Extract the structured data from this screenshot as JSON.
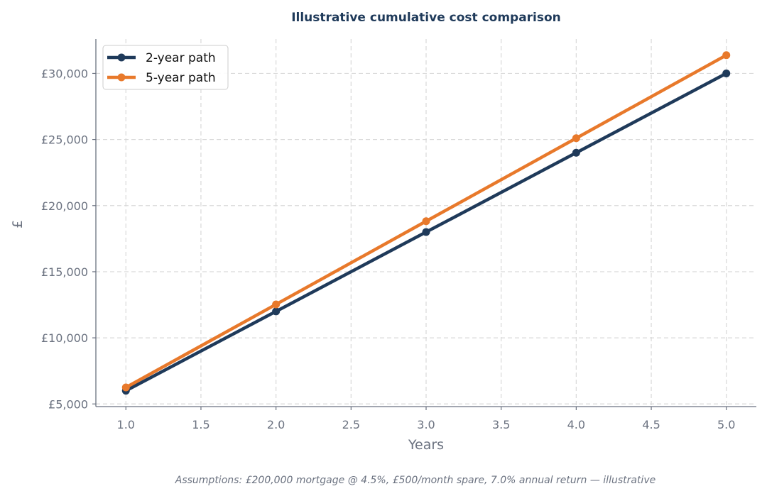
{
  "chart_data": {
    "type": "line",
    "title": "Illustrative cumulative cost comparison",
    "xlabel": "Years",
    "ylabel": "£",
    "xlim": [
      0.8,
      5.2
    ],
    "ylim": [
      4800,
      32600
    ],
    "x_ticks": [
      1.0,
      1.5,
      2.0,
      2.5,
      3.0,
      3.5,
      4.0,
      4.5,
      5.0
    ],
    "x_tick_labels": [
      "1.0",
      "1.5",
      "2.0",
      "2.5",
      "3.0",
      "3.5",
      "4.0",
      "4.5",
      "5.0"
    ],
    "y_ticks": [
      5000,
      10000,
      15000,
      20000,
      25000,
      30000
    ],
    "y_tick_labels": [
      "£5,000",
      "£10,000",
      "£15,000",
      "£20,000",
      "£25,000",
      "£30,000"
    ],
    "grid": true,
    "legend_position": "top-left",
    "x": [
      1.0,
      2.0,
      3.0,
      4.0,
      5.0
    ],
    "series": [
      {
        "name": "2-year path",
        "color": "#1f3a5a",
        "values": [
          6000,
          12000,
          18000,
          24000,
          30000
        ]
      },
      {
        "name": "5-year path",
        "color": "#e8792b",
        "values": [
          6250,
          12530,
          18820,
          25100,
          31380
        ]
      }
    ],
    "footnote": "Assumptions: £200,000 mortgage @ 4.5%, £500/month spare, 7.0% annual return — illustrative"
  }
}
